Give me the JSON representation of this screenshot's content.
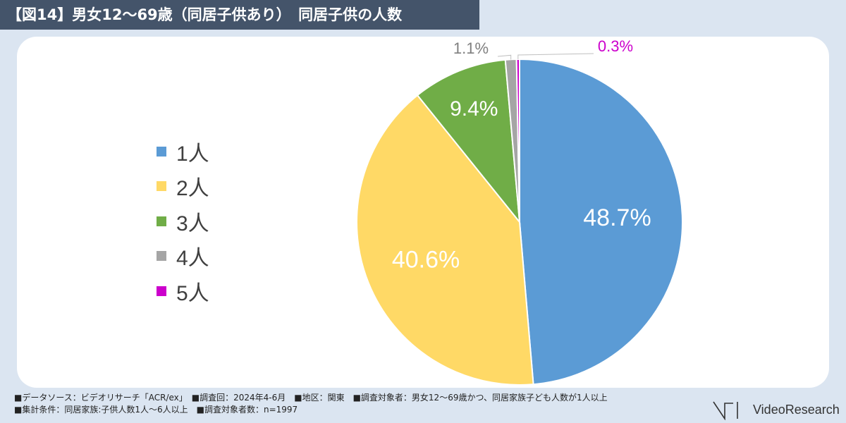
{
  "header": {
    "title": "【図14】男女12〜69歳（同居子供あり）　同居子供の人数"
  },
  "chart_data": {
    "type": "pie",
    "categories": [
      "1人",
      "2人",
      "3人",
      "4人",
      "5人"
    ],
    "values": [
      48.7,
      40.6,
      9.4,
      1.1,
      0.3
    ],
    "labels": [
      "48.7%",
      "40.6%",
      "9.4%",
      "1.1%",
      "0.3%"
    ],
    "colors": [
      "#5b9bd5",
      "#ffd966",
      "#70ad47",
      "#a5a5a5",
      "#cc00cc"
    ],
    "legend_position": "left",
    "start": "top",
    "direction": "clockwise"
  },
  "footer": {
    "line1": "■データソース：ビデオリサーチ「ACR/ex」　■調査回：2024年4-6月　■地区：関東　■調査対象者：男女12〜69歳かつ、同居家族子ども人数が1人以上",
    "line2": "■集計条件：同居家族:子供人数1人〜6人以上　■調査対象者数：n=1997"
  },
  "logo": {
    "text": "VideoResearch"
  }
}
